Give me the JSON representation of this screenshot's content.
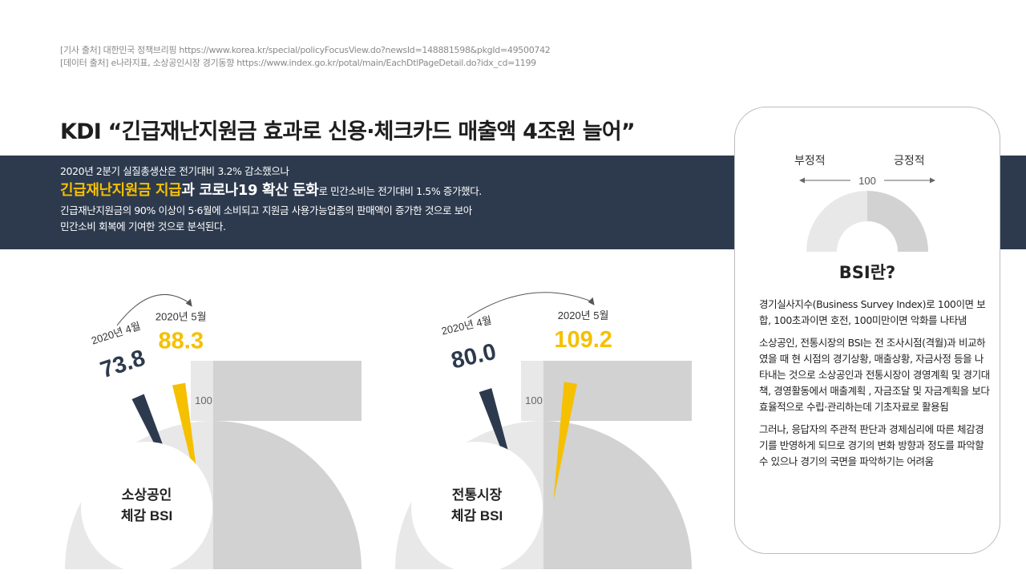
{
  "sources": {
    "article": "[기사 출처] 대한민국 정책브리핑 https://www.korea.kr/special/policyFocusView.do?newsId=148881598&pkgId=49500742",
    "data": "[데이터 출처]  e나라지표, 소상공인시장 경기동향 https://www.index.go.kr/potal/main/EachDtlPageDetail.do?idx_cd=1199"
  },
  "headline": "KDI “긴급재난지원금 효과로 신용·체크카드 매출액 4조원 늘어”",
  "banner": {
    "line1": "2020년 2분기 실질총생산은 전기대비 3.2% 감소했으나",
    "line2_highlight": "긴급재난지원금 지급",
    "line2_mid": "과 코로나19 확산 둔화",
    "line2_tail": "로 민간소비는 전기대비 1.5% 증가했다.",
    "line3": "긴급재난지원금의 90% 이상이 5·6월에 소비되고 지원금 사용가능업종의 판매액이 증가한 것으로 보아",
    "line4": "민간소비 회복에 기여한 것으로 분석된다."
  },
  "colors": {
    "navy": "#2d3a4e",
    "accent": "#f5c000",
    "gauge_light": "#e8e8e8",
    "gauge_mid": "#d2d2d2"
  },
  "chart_data": [
    {
      "type": "gauge",
      "title": "소상공인 체감 BSI",
      "title_line1": "소상공인",
      "title_line2": "체감 BSI",
      "range": [
        0,
        200
      ],
      "reference": 100,
      "reference_label": "100",
      "series": [
        {
          "name": "2020년 4월",
          "value": 73.8,
          "value_label": "73.8"
        },
        {
          "name": "2020년 5월",
          "value": 88.3,
          "value_label": "88.3"
        }
      ]
    },
    {
      "type": "gauge",
      "title": "전통시장 체감 BSI",
      "title_line1": "전통시장",
      "title_line2": "체감 BSI",
      "range": [
        0,
        200
      ],
      "reference": 100,
      "reference_label": "100",
      "series": [
        {
          "name": "2020년 4월",
          "value": 80.0,
          "value_label": "80.0"
        },
        {
          "name": "2020년 5월",
          "value": 109.2,
          "value_label": "109.2"
        }
      ]
    }
  ],
  "panel": {
    "negative": "부정적",
    "positive": "긍정적",
    "center_label": "100",
    "title": "BSI란?",
    "desc1": "경기실사지수(Business Survey Index)로 100이면 보합, 100초과이면 호전, 100미만이면 악화를 나타냄",
    "desc2": "소상공인, 전통시장의 BSI는 전 조사시점(격월)과 비교하였을 때 현 시점의 경기상황, 매출상황, 자금사정 등을 나타내는 것으로 소상공인과 전통시장이 경영계획 및 경기대책, 경영활동에서 매출계획 , 자금조달 및 자금계획을 보다 효율적으로 수립·관리하는데 기초자료로 활용됨",
    "desc3": "그러나, 응답자의 주관적 판단과 경제심리에 따른 체감경기를 반영하게 되므로 경기의 변화 방향과 정도를 파악할 수 있으나 경기의 국면을 파악하기는 어려움"
  }
}
